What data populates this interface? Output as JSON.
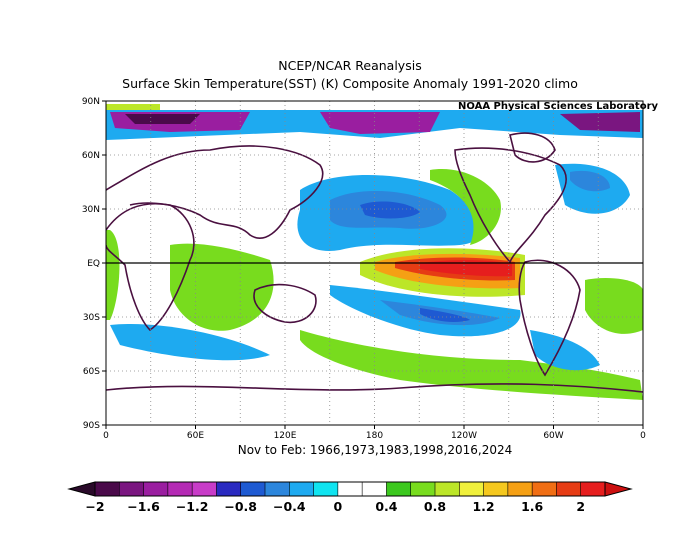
{
  "title_line1": "NCEP/NCAR Reanalysis",
  "title_line2": "Surface Skin Temperature(SST) (K) Composite Anomaly 1991-2020 climo",
  "credit": "NOAA Physical Sciences Laboratory",
  "caption": "Nov to Feb: 1966,1973,1983,1998,2016,2024",
  "lat_ticks": [
    "90N",
    "60N",
    "30N",
    "EQ",
    "30S",
    "60S",
    "90S"
  ],
  "lon_ticks": [
    "0",
    "60E",
    "120E",
    "180",
    "120W",
    "60W",
    "0"
  ],
  "colorbar": {
    "labels": [
      "-2",
      "-1.6",
      "-1.2",
      "-0.8",
      "-0.4",
      "0",
      "0.4",
      "0.8",
      "1.2",
      "1.6",
      "2"
    ],
    "colors": [
      "#4a0a4a",
      "#7a1680",
      "#9a1ea0",
      "#b42ab4",
      "#c83cc8",
      "#2a2ac0",
      "#1e5ad2",
      "#2c86dc",
      "#1eaaf0",
      "#10e4f0",
      "#ffffff",
      "#ffffff",
      "#3cc81e",
      "#78dc1e",
      "#bce628",
      "#f0f03c",
      "#f5c81e",
      "#f5a014",
      "#f06e14",
      "#e63c14",
      "#e61e1e"
    ]
  },
  "colors": {
    "land_outline": "#4a1040",
    "frame": "#000000"
  }
}
